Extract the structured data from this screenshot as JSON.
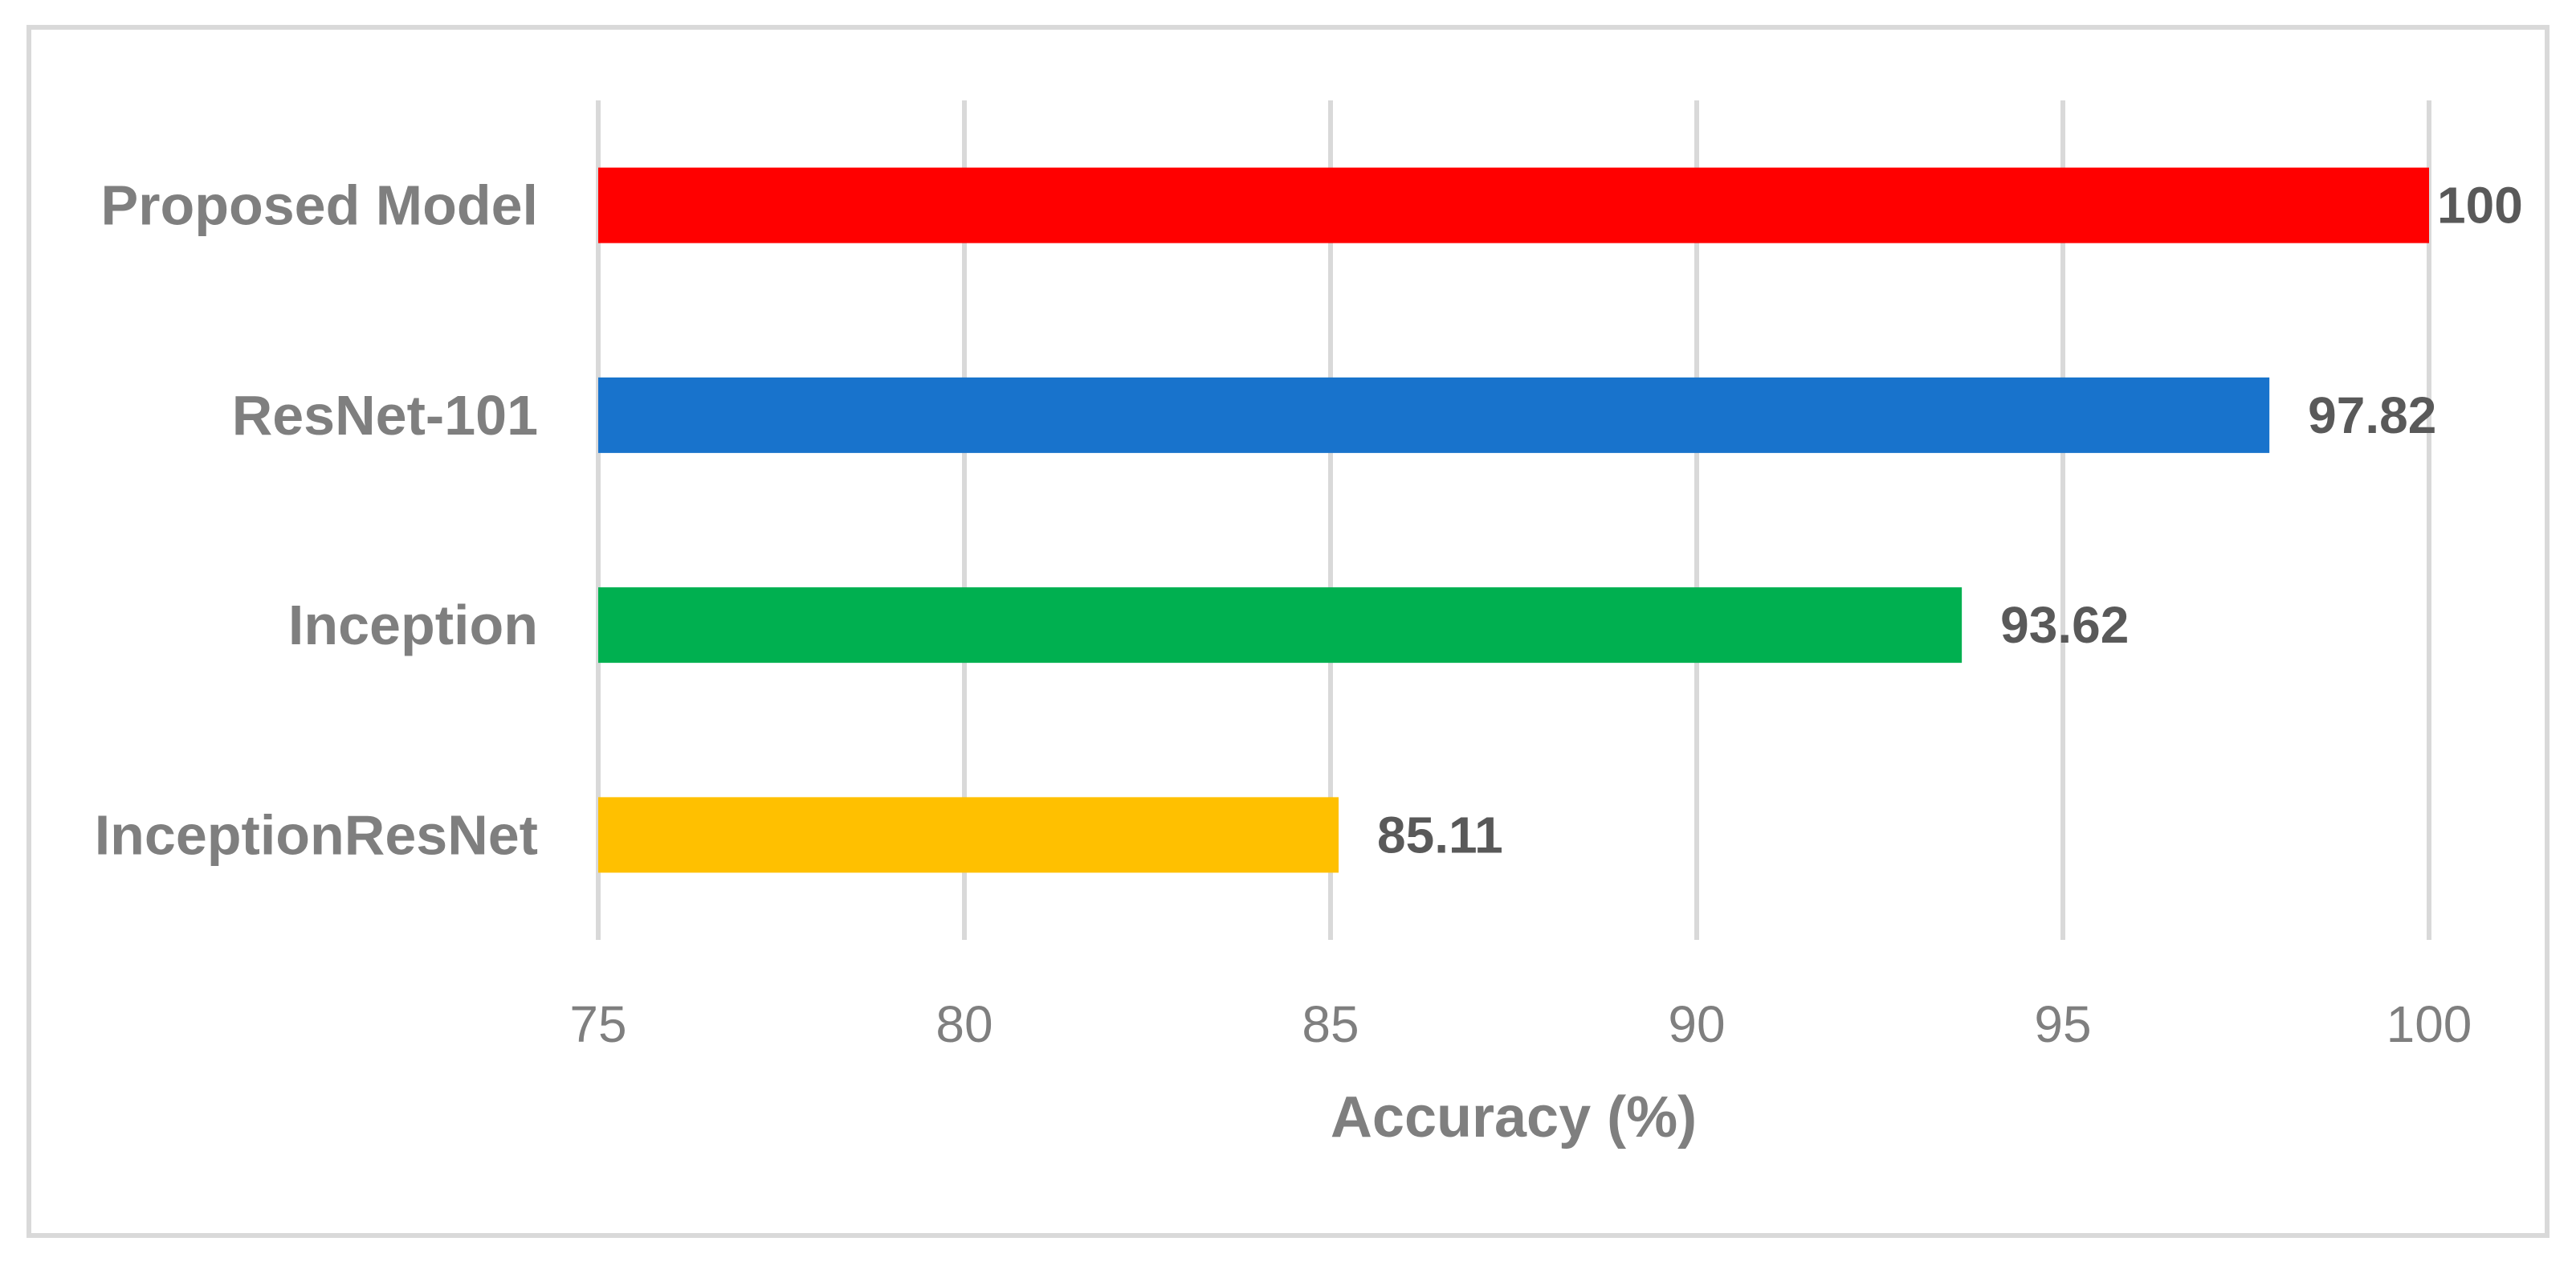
{
  "chart_data": {
    "type": "bar",
    "orientation": "horizontal",
    "categories": [
      "Proposed Model",
      "ResNet-101",
      "Inception",
      "InceptionResNet"
    ],
    "values": [
      100,
      97.82,
      93.62,
      85.11
    ],
    "value_labels": [
      "100",
      "97.82",
      "93.62",
      "85.11"
    ],
    "colors": [
      "#ff0000",
      "#1873cc",
      "#00b050",
      "#ffc000"
    ],
    "xlabel": "Accuracy (%)",
    "ylabel": "",
    "xlim": [
      75,
      100
    ],
    "x_ticks": [
      75,
      80,
      85,
      90,
      95,
      100
    ],
    "x_tick_labels": [
      "75",
      "80",
      "85",
      "90",
      "95",
      "100"
    ],
    "grid": "vertical",
    "legend": "none"
  }
}
